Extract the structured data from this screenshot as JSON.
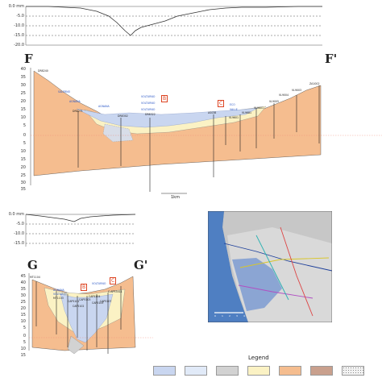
{
  "colors": {
    "sand": "#f5bd8f",
    "light_blue": "#c9d6f0",
    "pale_yellow": "#fbf2c4",
    "gray": "#d2d2d2",
    "brown": "#c9a08d",
    "dotted": "#f2f2f2"
  },
  "profile_ff": {
    "label_left": "F",
    "label_right": "F'",
    "top_ticks": [
      "0.0 mm",
      "-5.0",
      "-10.0",
      "-15.0",
      "-20.0"
    ],
    "depth_ticks": [
      "40",
      "35",
      "30",
      "25",
      "20",
      "15",
      "10",
      "5",
      "0",
      "5",
      "10",
      "15",
      "20",
      "25",
      "30",
      "35"
    ],
    "scale_label": "1km",
    "marker_b": "B",
    "marker_c": "C",
    "wells_blue": [
      "SALERNO",
      "AGNANA",
      "AGNANA",
      "VOLTURNO",
      "VOLTURNO",
      "VOLTURNO",
      "ECO",
      "VALLE"
    ],
    "wells_black": [
      "DR8240",
      "DR8271",
      "DR8302",
      "DR8322",
      "AS038",
      "VL9601",
      "VL9681",
      "VL9601",
      "VL9005",
      "VL9004",
      "VL9003",
      "ZA1002"
    ]
  },
  "profile_gg": {
    "label_left": "G",
    "label_right": "G'",
    "top_ticks": [
      "0.0 mm",
      "-5.0",
      "-10.0",
      "-15.0"
    ],
    "depth_ticks": [
      "45",
      "40",
      "35",
      "30",
      "25",
      "20",
      "15",
      "10",
      "5",
      "0",
      "5",
      "10",
      "15"
    ],
    "marker_b": "B",
    "marker_c": "C",
    "wells_blue": [
      "AGNANA",
      "VOLTURNO",
      "VOLTURNO"
    ],
    "wells_black": [
      "MT1104",
      "MT1103",
      "CAP5101",
      "CAP5102",
      "CAP5103",
      "CAP5104",
      "CAP5105",
      "CAP5107",
      "C.APR3411"
    ]
  },
  "map": {
    "scale_ticks": [
      "0",
      "1",
      "2",
      "3",
      "4"
    ]
  },
  "legend": {
    "title": "Legend",
    "swatch_names": [
      "light-blue",
      "pale-blue",
      "gray",
      "pale-yellow",
      "sand",
      "brown",
      "dotted"
    ]
  }
}
